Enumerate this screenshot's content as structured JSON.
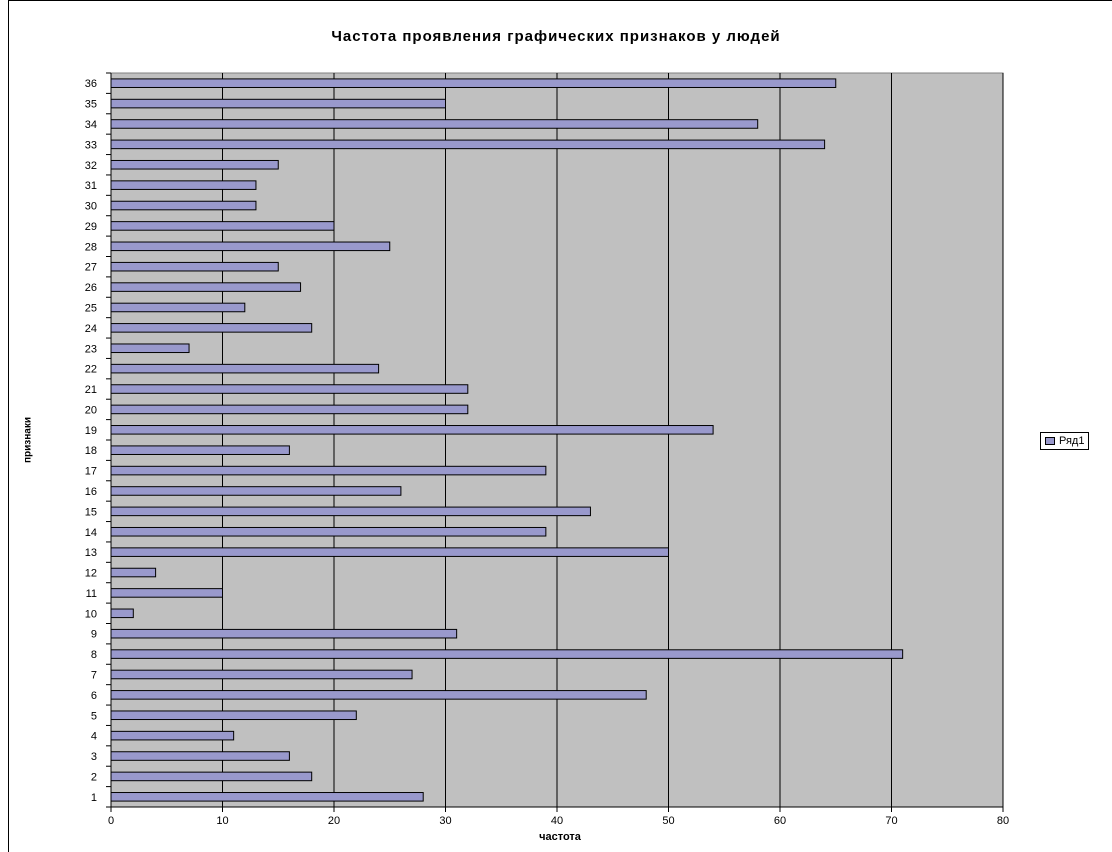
{
  "chart_data": {
    "type": "bar",
    "orientation": "horizontal",
    "title": "Частота проявления графических признаков у людей",
    "xlabel": "частота",
    "ylabel": "признаки",
    "xlim": [
      0,
      80
    ],
    "x_ticks": [
      0,
      10,
      20,
      30,
      40,
      50,
      60,
      70,
      80
    ],
    "grid": "vertical",
    "legend_position": "right",
    "categories": [
      "1",
      "2",
      "3",
      "4",
      "5",
      "6",
      "7",
      "8",
      "9",
      "10",
      "11",
      "12",
      "13",
      "14",
      "15",
      "16",
      "17",
      "18",
      "19",
      "20",
      "21",
      "22",
      "23",
      "24",
      "25",
      "26",
      "27",
      "28",
      "29",
      "30",
      "31",
      "32",
      "33",
      "34",
      "35",
      "36"
    ],
    "series": [
      {
        "name": "Ряд1",
        "color": "#9999cc",
        "values": [
          28,
          18,
          16,
          11,
          22,
          48,
          27,
          71,
          31,
          2,
          10,
          4,
          50,
          39,
          43,
          26,
          39,
          16,
          54,
          32,
          32,
          24,
          7,
          18,
          12,
          17,
          15,
          25,
          20,
          13,
          13,
          15,
          64,
          58,
          30,
          65
        ]
      }
    ]
  },
  "colors": {
    "plot_background": "#c0c0c0",
    "bar_fill": "#9999cc",
    "grid": "#000000"
  }
}
